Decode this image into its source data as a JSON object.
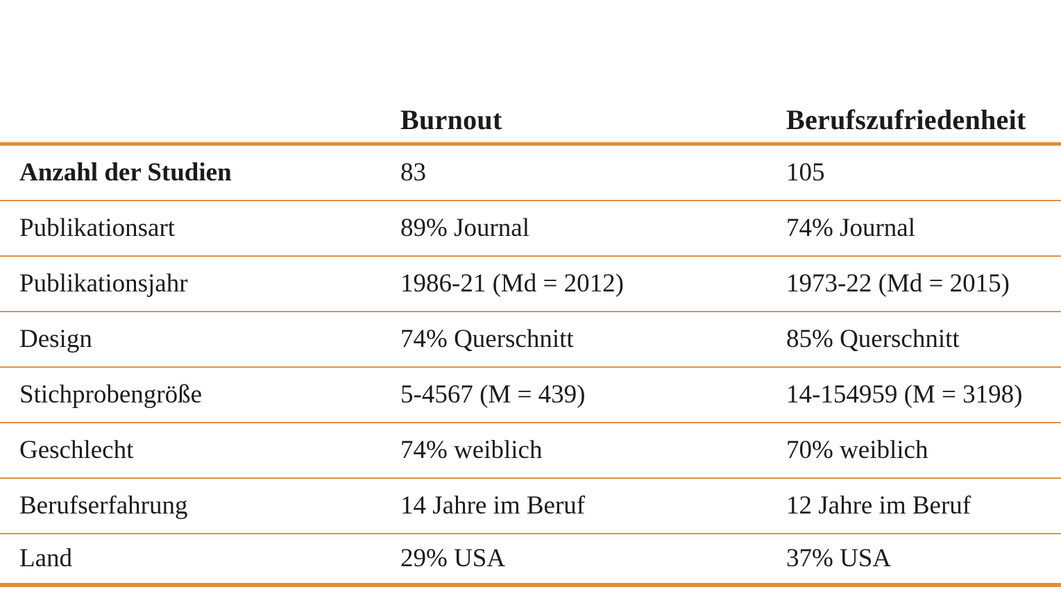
{
  "table": {
    "columns": [
      {
        "label": "Burnout"
      },
      {
        "label": "Berufszufriedenheit"
      }
    ],
    "rows": [
      {
        "label": "Anzahl der Studien",
        "burnout": "83",
        "berufszufriedenheit": "105"
      },
      {
        "label": "Publikationsart",
        "burnout": "89% Journal",
        "berufszufriedenheit": "74% Journal"
      },
      {
        "label": "Publikationsjahr",
        "burnout": "1986-21 (Md = 2012)",
        "berufszufriedenheit": "1973-22 (Md = 2015)"
      },
      {
        "label": "Design",
        "burnout": "74% Querschnitt",
        "berufszufriedenheit": "85% Querschnitt"
      },
      {
        "label": "Stichprobengröße",
        "burnout": "5-4567 (M = 439)",
        "berufszufriedenheit": "14-154959 (M = 3198)"
      },
      {
        "label": "Geschlecht",
        "burnout": "74% weiblich",
        "berufszufriedenheit": "70% weiblich"
      },
      {
        "label": "Berufserfahrung",
        "burnout": "14 Jahre im Beruf",
        "berufszufriedenheit": "12 Jahre im Beruf"
      },
      {
        "label": "Land",
        "burnout": "29% USA",
        "berufszufriedenheit": "37% USA"
      }
    ],
    "colors": {
      "rule_thick": "#dd8e3e",
      "rule_thin": "#dc9247",
      "text": "#1b1b1b",
      "background": "#ffffff"
    }
  }
}
